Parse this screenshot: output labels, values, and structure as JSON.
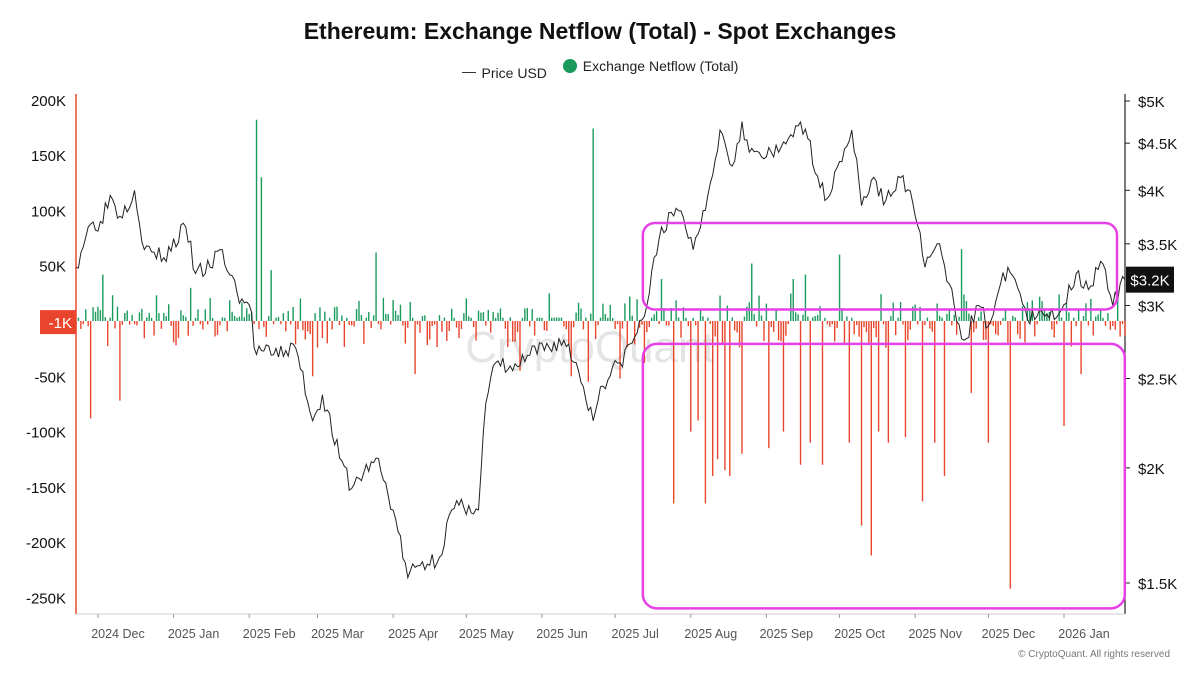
{
  "chart_data": {
    "type": "bar+line",
    "title": "Ethereum: Exchange Netflow (Total) - Spot Exchanges",
    "legend": [
      {
        "name": "Price USD",
        "kind": "line",
        "color": "#333333"
      },
      {
        "name": "Exchange Netflow (Total)",
        "kind": "dot",
        "color": "#1a9a5c"
      }
    ],
    "legend_position": "top-center",
    "watermark": "CryptoQuant",
    "copyright": "© CryptoQuant. All rights reserved",
    "x_start": "2024-11-22",
    "x_end": "2026-01-26",
    "x_ticks": [
      {
        "label": "2024 Dec",
        "date": "2024-12-01"
      },
      {
        "label": "2025 Jan",
        "date": "2025-01-01"
      },
      {
        "label": "2025 Feb",
        "date": "2025-02-01"
      },
      {
        "label": "2025 Mar",
        "date": "2025-03-01"
      },
      {
        "label": "2025 Apr",
        "date": "2025-04-01"
      },
      {
        "label": "2025 May",
        "date": "2025-05-01"
      },
      {
        "label": "2025 Jun",
        "date": "2025-06-01"
      },
      {
        "label": "2025 Jul",
        "date": "2025-07-01"
      },
      {
        "label": "2025 Aug",
        "date": "2025-08-01"
      },
      {
        "label": "2025 Sep",
        "date": "2025-09-01"
      },
      {
        "label": "2025 Oct",
        "date": "2025-10-01"
      },
      {
        "label": "2025 Nov",
        "date": "2025-11-01"
      },
      {
        "label": "2025 Dec",
        "date": "2025-12-01"
      },
      {
        "label": "2026 Jan",
        "date": "2026-01-01"
      }
    ],
    "y_left": {
      "range": [
        -250000,
        200000
      ],
      "ticks": [
        {
          "value": 200000,
          "label": "200K"
        },
        {
          "value": 150000,
          "label": "150K"
        },
        {
          "value": 100000,
          "label": "100K"
        },
        {
          "value": 50000,
          "label": "50K"
        },
        {
          "value": -50000,
          "label": "-50K"
        },
        {
          "value": -100000,
          "label": "-100K"
        },
        {
          "value": -150000,
          "label": "-150K"
        },
        {
          "value": -200000,
          "label": "-200K"
        },
        {
          "value": -250000,
          "label": "-250K"
        }
      ],
      "current_value": -1000,
      "current_label": "-1K",
      "current_color": "#e8452c"
    },
    "y_right": {
      "scale": "log",
      "range": [
        1400,
        5000
      ],
      "ticks": [
        {
          "value": 5000,
          "label": "$5K"
        },
        {
          "value": 4500,
          "label": "$4.5K"
        },
        {
          "value": 4000,
          "label": "$4K"
        },
        {
          "value": 3500,
          "label": "$3.5K"
        },
        {
          "value": 3000,
          "label": "$3K"
        },
        {
          "value": 2500,
          "label": "$2.5K"
        },
        {
          "value": 2000,
          "label": "$2K"
        },
        {
          "value": 1500,
          "label": "$1.5K"
        }
      ],
      "current_value": 3200,
      "current_label": "$3.2K"
    },
    "grid": false,
    "colors": {
      "inflow": "#1a9a5c",
      "outflow": "#e8452c",
      "price": "#222222",
      "highlight": "#e640e6"
    },
    "price_series": {
      "name": "Price USD",
      "points": [
        [
          "2024-11-22",
          3300
        ],
        [
          "2024-11-27",
          3650
        ],
        [
          "2024-12-02",
          3700
        ],
        [
          "2024-12-06",
          3950
        ],
        [
          "2024-12-10",
          3750
        ],
        [
          "2024-12-16",
          4000
        ],
        [
          "2024-12-20",
          3450
        ],
        [
          "2024-12-28",
          3380
        ],
        [
          "2025-01-06",
          3650
        ],
        [
          "2025-01-10",
          3250
        ],
        [
          "2025-01-16",
          3300
        ],
        [
          "2025-01-20",
          3450
        ],
        [
          "2025-01-27",
          3100
        ],
        [
          "2025-02-02",
          2950
        ],
        [
          "2025-02-03",
          2700
        ],
        [
          "2025-02-10",
          2650
        ],
        [
          "2025-02-20",
          2700
        ],
        [
          "2025-02-27",
          2250
        ],
        [
          "2025-03-03",
          2400
        ],
        [
          "2025-03-10",
          2050
        ],
        [
          "2025-03-15",
          1900
        ],
        [
          "2025-03-25",
          2050
        ],
        [
          "2025-04-01",
          1800
        ],
        [
          "2025-04-07",
          1520
        ],
        [
          "2025-04-10",
          1560
        ],
        [
          "2025-04-20",
          1600
        ],
        [
          "2025-04-25",
          1800
        ],
        [
          "2025-05-02",
          1820
        ],
        [
          "2025-05-06",
          1800
        ],
        [
          "2025-05-09",
          2350
        ],
        [
          "2025-05-13",
          2600
        ],
        [
          "2025-05-20",
          2550
        ],
        [
          "2025-05-27",
          2650
        ],
        [
          "2025-06-10",
          2750
        ],
        [
          "2025-06-16",
          2550
        ],
        [
          "2025-06-22",
          2250
        ],
        [
          "2025-06-25",
          2450
        ],
        [
          "2025-07-03",
          2600
        ],
        [
          "2025-07-10",
          2800
        ],
        [
          "2025-07-14",
          3000
        ],
        [
          "2025-07-20",
          3650
        ],
        [
          "2025-07-28",
          3800
        ],
        [
          "2025-08-02",
          3450
        ],
        [
          "2025-08-08",
          3950
        ],
        [
          "2025-08-13",
          4650
        ],
        [
          "2025-08-18",
          4250
        ],
        [
          "2025-08-22",
          4750
        ],
        [
          "2025-08-25",
          4400
        ],
        [
          "2025-09-01",
          4350
        ],
        [
          "2025-09-06",
          4400
        ],
        [
          "2025-09-13",
          4700
        ],
        [
          "2025-09-18",
          4550
        ],
        [
          "2025-09-25",
          3900
        ],
        [
          "2025-10-01",
          4300
        ],
        [
          "2025-10-06",
          4650
        ],
        [
          "2025-10-10",
          3850
        ],
        [
          "2025-10-14",
          4100
        ],
        [
          "2025-10-20",
          3900
        ],
        [
          "2025-10-27",
          4150
        ],
        [
          "2025-11-03",
          3600
        ],
        [
          "2025-11-05",
          3300
        ],
        [
          "2025-11-10",
          3500
        ],
        [
          "2025-11-17",
          3000
        ],
        [
          "2025-11-21",
          2750
        ],
        [
          "2025-11-27",
          3000
        ],
        [
          "2025-12-01",
          2850
        ],
        [
          "2025-12-09",
          3300
        ],
        [
          "2025-12-12",
          3200
        ],
        [
          "2025-12-17",
          2900
        ],
        [
          "2025-12-24",
          2920
        ],
        [
          "2025-12-31",
          2970
        ],
        [
          "2026-01-06",
          3250
        ],
        [
          "2026-01-12",
          3150
        ],
        [
          "2026-01-16",
          3350
        ],
        [
          "2026-01-21",
          3000
        ],
        [
          "2026-01-26",
          3200
        ]
      ]
    },
    "netflow_series": {
      "name": "Exchange Netflow (Total)",
      "spikes": [
        [
          "2024-11-28",
          -88000
        ],
        [
          "2024-12-10",
          -72000
        ],
        [
          "2024-12-03",
          42000
        ],
        [
          "2025-01-08",
          30000
        ],
        [
          "2025-02-04",
          182000
        ],
        [
          "2025-02-06",
          130000
        ],
        [
          "2025-02-10",
          46000
        ],
        [
          "2025-02-27",
          -50000
        ],
        [
          "2025-03-25",
          62000
        ],
        [
          "2025-04-10",
          -48000
        ],
        [
          "2025-05-23",
          -45000
        ],
        [
          "2025-06-04",
          25000
        ],
        [
          "2025-06-13",
          -50000
        ],
        [
          "2025-06-20",
          -55000
        ],
        [
          "2025-06-22",
          174000
        ],
        [
          "2025-07-03",
          -52000
        ],
        [
          "2025-07-13",
          -38000
        ],
        [
          "2025-07-20",
          38000
        ],
        [
          "2025-07-25",
          -165000
        ],
        [
          "2025-08-01",
          -100000
        ],
        [
          "2025-08-04",
          -90000
        ],
        [
          "2025-08-07",
          -165000
        ],
        [
          "2025-08-10",
          -140000
        ],
        [
          "2025-08-12",
          -125000
        ],
        [
          "2025-08-15",
          -135000
        ],
        [
          "2025-08-17",
          -140000
        ],
        [
          "2025-08-22",
          -120000
        ],
        [
          "2025-08-26",
          52000
        ],
        [
          "2025-09-02",
          -115000
        ],
        [
          "2025-09-08",
          -100000
        ],
        [
          "2025-09-12",
          38000
        ],
        [
          "2025-09-15",
          -130000
        ],
        [
          "2025-09-17",
          42000
        ],
        [
          "2025-09-19",
          -110000
        ],
        [
          "2025-09-24",
          -130000
        ],
        [
          "2025-10-01",
          60000
        ],
        [
          "2025-10-05",
          -110000
        ],
        [
          "2025-10-10",
          -185000
        ],
        [
          "2025-10-14",
          -212000
        ],
        [
          "2025-10-17",
          -100000
        ],
        [
          "2025-10-21",
          -110000
        ],
        [
          "2025-10-28",
          -105000
        ],
        [
          "2025-11-04",
          -163000
        ],
        [
          "2025-11-09",
          -110000
        ],
        [
          "2025-11-13",
          -140000
        ],
        [
          "2025-11-20",
          65000
        ],
        [
          "2025-11-24",
          -65000
        ],
        [
          "2025-12-01",
          -110000
        ],
        [
          "2025-12-10",
          -242000
        ],
        [
          "2026-01-01",
          -95000
        ],
        [
          "2026-01-08",
          -48000
        ],
        [
          "2026-01-12",
          20000
        ]
      ],
      "noise_level": 14000
    },
    "annotations": [
      {
        "type": "highlight-box",
        "x_range": [
          "2025-07-14",
          "2026-01-26"
        ],
        "y_price_range": [
          3000,
          3650
        ]
      },
      {
        "type": "highlight-box",
        "x_range": [
          "2025-07-14",
          "2026-01-21"
        ],
        "y_netflow_range": [
          -250000,
          -18000
        ]
      }
    ]
  }
}
